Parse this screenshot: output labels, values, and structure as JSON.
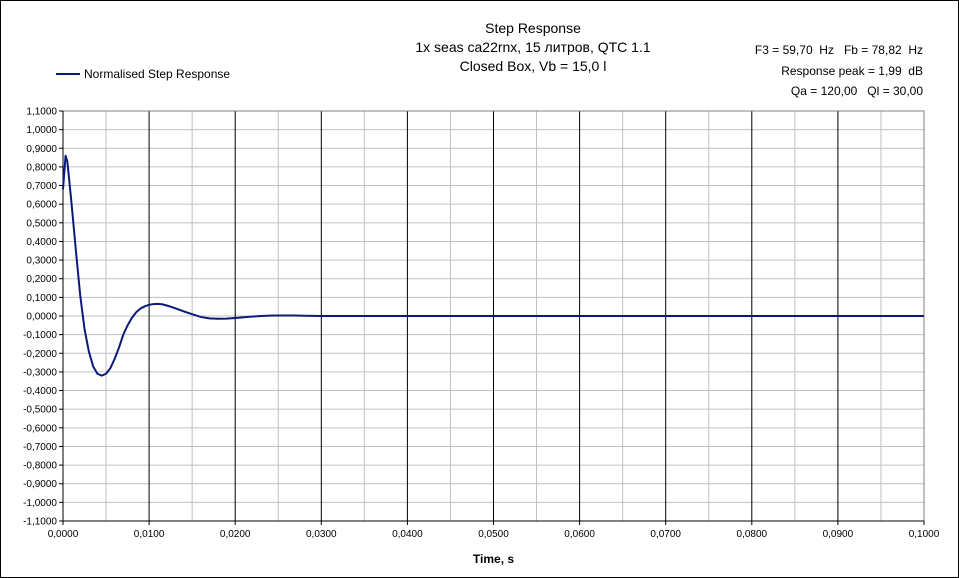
{
  "chart_data": {
    "type": "line",
    "title_lines": [
      "Step Response",
      "1x seas ca22rnx, 15 литров, QTC 1.1",
      "Closed Box, Vb = 15,0 l"
    ],
    "info_lines": [
      "F3 = 59,70  Hz   Fb = 78,82  Hz",
      "Response peak = 1,99  dB",
      "Qa = 120,00   Ql = 30,00"
    ],
    "xlabel": "Time, s",
    "ylabel": "",
    "xlim": [
      0,
      0.1
    ],
    "ylim": [
      -1.1,
      1.1
    ],
    "legend_position": "top-left",
    "grid": true,
    "x_ticks": [
      0,
      0.01,
      0.02,
      0.03,
      0.04,
      0.05,
      0.06,
      0.07,
      0.08,
      0.09,
      0.1
    ],
    "x_tick_labels": [
      "0,0000",
      "0,0100",
      "0,0200",
      "0,0300",
      "0,0400",
      "0,0500",
      "0,0600",
      "0,0700",
      "0,0800",
      "0,0900",
      "0,1000"
    ],
    "y_ticks": [
      1.1,
      1.0,
      0.9,
      0.8,
      0.7,
      0.6,
      0.5,
      0.4,
      0.3,
      0.2,
      0.1,
      0,
      -0.1,
      -0.2,
      -0.3,
      -0.4,
      -0.5,
      -0.6,
      -0.7,
      -0.8,
      -0.9,
      -1.0,
      -1.1
    ],
    "y_tick_labels": [
      "1,1000",
      "1,0000",
      "0,9000",
      "0,8000",
      "0,7000",
      "0,6000",
      "0,5000",
      "0,4000",
      "0,3000",
      "0,2000",
      "0,1000",
      "0,0000",
      "-0,1000",
      "-0,2000",
      "-0,3000",
      "-0,4000",
      "-0,5000",
      "-0,6000",
      "-0,7000",
      "-0,8000",
      "-0,9000",
      "-1,0000",
      "-1,1000"
    ],
    "series": [
      {
        "name": "Normalised Step Response",
        "color": "#0a1a7a",
        "x": [
          0,
          0.0002,
          0.0003,
          0.0005,
          0.0007,
          0.001,
          0.0015,
          0.002,
          0.0025,
          0.003,
          0.0035,
          0.004,
          0.0045,
          0.005,
          0.0055,
          0.006,
          0.0065,
          0.007,
          0.0075,
          0.008,
          0.0085,
          0.009,
          0.0095,
          0.01,
          0.0105,
          0.011,
          0.0115,
          0.012,
          0.0125,
          0.013,
          0.0135,
          0.014,
          0.015,
          0.016,
          0.017,
          0.018,
          0.019,
          0.02,
          0.021,
          0.022,
          0.023,
          0.024,
          0.025,
          0.026,
          0.027,
          0.028,
          0.029,
          0.03,
          0.032,
          0.035,
          0.04,
          0.05,
          0.06,
          0.07,
          0.08,
          0.09,
          0.1
        ],
        "y": [
          0.68,
          0.8,
          0.86,
          0.83,
          0.74,
          0.6,
          0.35,
          0.11,
          -0.07,
          -0.19,
          -0.27,
          -0.31,
          -0.32,
          -0.31,
          -0.28,
          -0.23,
          -0.17,
          -0.1,
          -0.05,
          -0.01,
          0.02,
          0.04,
          0.052,
          0.06,
          0.064,
          0.065,
          0.063,
          0.057,
          0.05,
          0.042,
          0.034,
          0.025,
          0.01,
          -0.005,
          -0.013,
          -0.015,
          -0.014,
          -0.011,
          -0.007,
          -0.003,
          0,
          0.002,
          0.003,
          0.003,
          0.0025,
          0.0015,
          0.0008,
          0.0003,
          0,
          0,
          0,
          0,
          0,
          0,
          0,
          0,
          0
        ]
      }
    ]
  }
}
